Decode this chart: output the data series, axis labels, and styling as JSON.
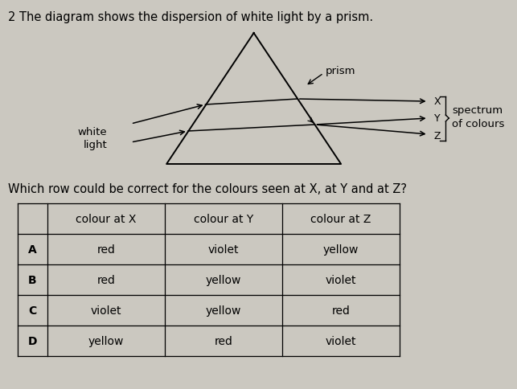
{
  "bg_color": "#cbc8c0",
  "question_number": "2",
  "question_text": "The diagram shows the dispersion of white light by a prism.",
  "sub_question": "Which row could be correct for the colours seen at X, at Y and at Z?",
  "prism_label": "prism",
  "white_light_label": "white\nlight",
  "spectrum_label": "spectrum\nof colours",
  "xyz_labels": [
    "X",
    "Y",
    "Z"
  ],
  "table_headers": [
    "",
    "colour at X",
    "colour at Y",
    "colour at Z"
  ],
  "table_rows": [
    [
      "A",
      "red",
      "violet",
      "yellow"
    ],
    [
      "B",
      "red",
      "yellow",
      "violet"
    ],
    [
      "C",
      "violet",
      "yellow",
      "red"
    ],
    [
      "D",
      "yellow",
      "red",
      "violet"
    ]
  ],
  "font_size_question": 10.5,
  "font_size_table": 10,
  "font_size_labels": 9.5
}
